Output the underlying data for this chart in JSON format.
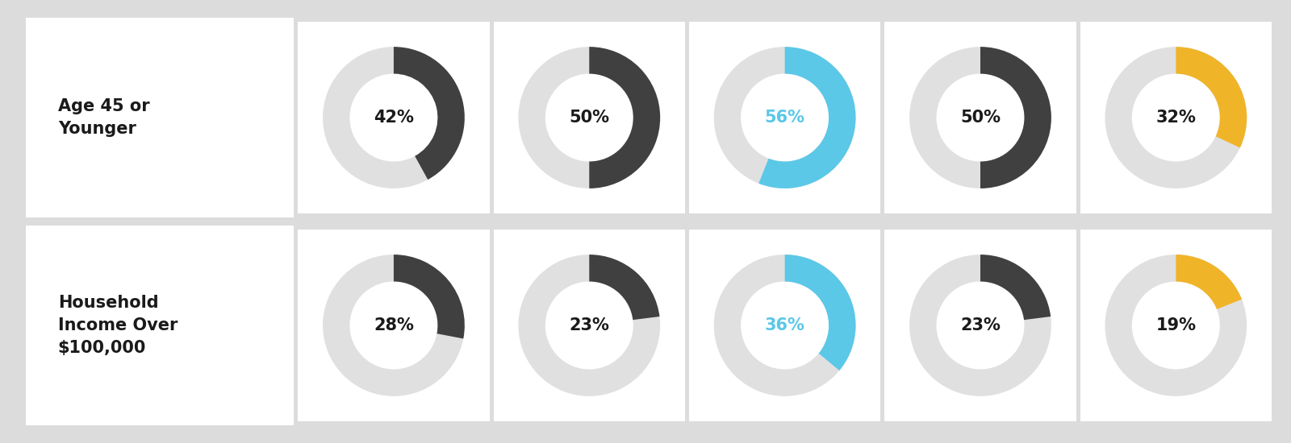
{
  "row_labels": [
    "Age 45 or\nYounger",
    "Household\nIncome Over\n$100,000"
  ],
  "values": [
    [
      42,
      50,
      56,
      50,
      32
    ],
    [
      28,
      23,
      36,
      23,
      19
    ]
  ],
  "colors": [
    "#404040",
    "#404040",
    "#5BC8E8",
    "#404040",
    "#F0B429"
  ],
  "bg_color": "#DCDCDC",
  "panel_color": "#FFFFFF",
  "text_color_dark": "#1a1a1a",
  "text_color_cyan": "#5BC8E8",
  "ring_bg_color": "#E0E0E0",
  "label_fontsize": 15,
  "value_fontsize": 15,
  "n_rows": 2,
  "n_cols": 5
}
